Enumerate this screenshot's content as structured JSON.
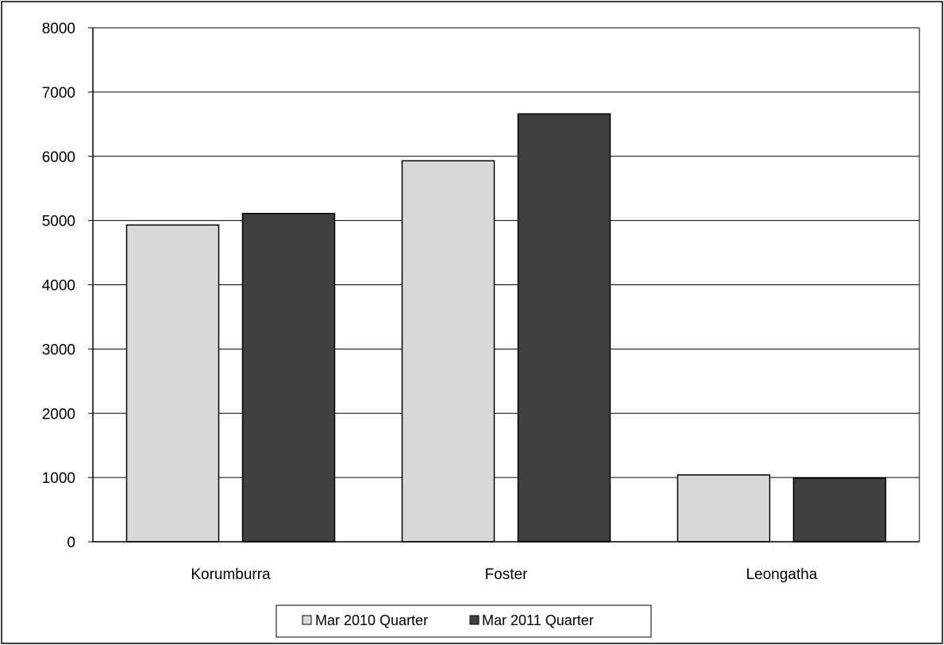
{
  "chart_data": {
    "type": "bar",
    "categories": [
      "Korumburra",
      "Foster",
      "Leongatha"
    ],
    "series": [
      {
        "name": "Mar 2010 Quarter",
        "values": [
          4930,
          5930,
          1040
        ],
        "color": "#d9d9d9"
      },
      {
        "name": "Mar 2011 Quarter",
        "values": [
          5110,
          6660,
          990
        ],
        "color": "#404040"
      }
    ],
    "yticks": [
      0,
      1000,
      2000,
      3000,
      4000,
      5000,
      6000,
      7000,
      8000
    ],
    "ylim": [
      0,
      8000
    ],
    "grid": true,
    "legend_position": "bottom-center",
    "bar_outline_color": "#000000"
  }
}
